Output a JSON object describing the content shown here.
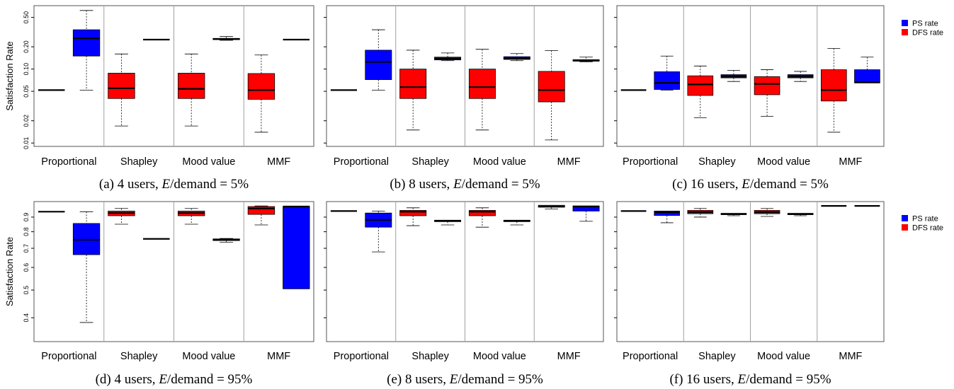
{
  "figure": {
    "legend": {
      "entries": [
        {
          "label": "PS rate",
          "color": "#0000ff"
        },
        {
          "label": "DFS rate",
          "color": "#ff0000"
        }
      ]
    },
    "ylabel": "Satisfaction Rate"
  },
  "colors": {
    "ps": "#0000ff",
    "dfs": "#ff0000",
    "frame": "#555555",
    "separator": "#a0a0a0"
  },
  "chart_data": [
    {
      "id": "a",
      "type": "box",
      "scale": "log",
      "caption": {
        "prefix": "(a) 4 users, ",
        "var": "E",
        "suffix": "/demand = 5%"
      },
      "ylabel": "Satisfaction Rate",
      "ylim": [
        0.009,
        0.72
      ],
      "yticks": [
        0.01,
        0.02,
        0.05,
        0.1,
        0.2,
        0.5
      ],
      "yticklabels": [
        "0.01",
        "0.02",
        "0.05",
        "0.10",
        "0.20",
        "0.50"
      ],
      "categories": [
        "Proportional",
        "Shapley",
        "Mood value",
        "MMF"
      ],
      "series": [
        {
          "name": "DFS rate",
          "color": "#ff0000",
          "boxes": [
            {
              "min": 0.052,
              "q1": 0.052,
              "median": 0.052,
              "q3": 0.052,
              "max": 0.052
            },
            {
              "min": 0.017,
              "q1": 0.04,
              "median": 0.055,
              "q3": 0.088,
              "max": 0.16
            },
            {
              "min": 0.017,
              "q1": 0.04,
              "median": 0.054,
              "q3": 0.088,
              "max": 0.16
            },
            {
              "min": 0.014,
              "q1": 0.039,
              "median": 0.052,
              "q3": 0.087,
              "max": 0.155
            }
          ]
        },
        {
          "name": "PS rate",
          "color": "#0000ff",
          "boxes": [
            {
              "min": 0.052,
              "q1": 0.15,
              "median": 0.26,
              "q3": 0.34,
              "max": 0.62
            },
            {
              "min": 0.25,
              "q1": 0.25,
              "median": 0.25,
              "q3": 0.25,
              "max": 0.25
            },
            {
              "min": 0.245,
              "q1": 0.25,
              "median": 0.255,
              "q3": 0.26,
              "max": 0.275
            },
            {
              "min": 0.25,
              "q1": 0.25,
              "median": 0.25,
              "q3": 0.25,
              "max": 0.25
            }
          ]
        }
      ]
    },
    {
      "id": "b",
      "type": "box",
      "scale": "log",
      "caption": {
        "prefix": "(b) 8 users, ",
        "var": "E",
        "suffix": "/demand = 5%"
      },
      "ylabel": "",
      "ylim": [
        0.009,
        0.72
      ],
      "yticks": [
        0.01,
        0.02,
        0.05,
        0.1,
        0.2,
        0.5
      ],
      "yticklabels": [
        "",
        "",
        "",
        "",
        "",
        ""
      ],
      "categories": [
        "Proportional",
        "Shapley",
        "Mood value",
        "MMF"
      ],
      "series": [
        {
          "name": "DFS rate",
          "color": "#ff0000",
          "boxes": [
            {
              "min": 0.052,
              "q1": 0.052,
              "median": 0.052,
              "q3": 0.052,
              "max": 0.052
            },
            {
              "min": 0.015,
              "q1": 0.04,
              "median": 0.057,
              "q3": 0.1,
              "max": 0.18
            },
            {
              "min": 0.015,
              "q1": 0.04,
              "median": 0.057,
              "q3": 0.1,
              "max": 0.185
            },
            {
              "min": 0.011,
              "q1": 0.036,
              "median": 0.052,
              "q3": 0.093,
              "max": 0.178
            }
          ]
        },
        {
          "name": "PS rate",
          "color": "#0000ff",
          "boxes": [
            {
              "min": 0.052,
              "q1": 0.072,
              "median": 0.125,
              "q3": 0.18,
              "max": 0.34
            },
            {
              "min": 0.13,
              "q1": 0.133,
              "median": 0.138,
              "q3": 0.145,
              "max": 0.165
            },
            {
              "min": 0.13,
              "q1": 0.135,
              "median": 0.14,
              "q3": 0.147,
              "max": 0.162
            },
            {
              "min": 0.125,
              "q1": 0.128,
              "median": 0.13,
              "q3": 0.134,
              "max": 0.145
            }
          ]
        }
      ]
    },
    {
      "id": "c",
      "type": "box",
      "scale": "log",
      "caption": {
        "prefix": "(c) 16 users, ",
        "var": "E",
        "suffix": "/demand = 5%"
      },
      "ylabel": "",
      "ylim": [
        0.009,
        0.72
      ],
      "yticks": [
        0.01,
        0.02,
        0.05,
        0.1,
        0.2,
        0.5
      ],
      "yticklabels": [
        "",
        "",
        "",
        "",
        "",
        ""
      ],
      "categories": [
        "Proportional",
        "Shapley",
        "Mood value",
        "MMF"
      ],
      "series": [
        {
          "name": "DFS rate",
          "color": "#ff0000",
          "boxes": [
            {
              "min": 0.052,
              "q1": 0.052,
              "median": 0.052,
              "q3": 0.052,
              "max": 0.052
            },
            {
              "min": 0.022,
              "q1": 0.044,
              "median": 0.062,
              "q3": 0.081,
              "max": 0.11
            },
            {
              "min": 0.023,
              "q1": 0.045,
              "median": 0.063,
              "q3": 0.079,
              "max": 0.098
            },
            {
              "min": 0.014,
              "q1": 0.037,
              "median": 0.052,
              "q3": 0.098,
              "max": 0.19
            }
          ]
        },
        {
          "name": "PS rate",
          "color": "#0000ff",
          "boxes": [
            {
              "min": 0.052,
              "q1": 0.053,
              "median": 0.065,
              "q3": 0.092,
              "max": 0.15
            },
            {
              "min": 0.068,
              "q1": 0.076,
              "median": 0.08,
              "q3": 0.084,
              "max": 0.096
            },
            {
              "min": 0.068,
              "q1": 0.076,
              "median": 0.08,
              "q3": 0.084,
              "max": 0.093
            },
            {
              "min": 0.065,
              "q1": 0.065,
              "median": 0.066,
              "q3": 0.098,
              "max": 0.145
            }
          ]
        }
      ]
    },
    {
      "id": "d",
      "type": "box",
      "scale": "log",
      "caption": {
        "prefix": "(d) 4 users, ",
        "var": "E",
        "suffix": "/demand = 95%"
      },
      "ylabel": "Satisfaction Rate",
      "ylim": [
        0.33,
        1.02
      ],
      "yticks": [
        0.4,
        0.5,
        0.6,
        0.7,
        0.8,
        0.9
      ],
      "yticklabels": [
        "0.4",
        "0.5",
        "0.6",
        "0.7",
        "0.8",
        "0.9"
      ],
      "categories": [
        "Proportional",
        "Shapley",
        "Mood value",
        "MMF"
      ],
      "series": [
        {
          "name": "DFS rate",
          "color": "#ff0000",
          "boxes": [
            {
              "min": 0.94,
              "q1": 0.94,
              "median": 0.94,
              "q3": 0.94,
              "max": 0.94
            },
            {
              "min": 0.85,
              "q1": 0.91,
              "median": 0.93,
              "q3": 0.945,
              "max": 0.965
            },
            {
              "min": 0.85,
              "q1": 0.91,
              "median": 0.93,
              "q3": 0.945,
              "max": 0.965
            },
            {
              "min": 0.845,
              "q1": 0.92,
              "median": 0.965,
              "q3": 0.98,
              "max": 0.985
            }
          ]
        },
        {
          "name": "PS rate",
          "color": "#0000ff",
          "boxes": [
            {
              "min": 0.385,
              "q1": 0.665,
              "median": 0.75,
              "q3": 0.855,
              "max": 0.94
            },
            {
              "min": 0.755,
              "q1": 0.755,
              "median": 0.755,
              "q3": 0.755,
              "max": 0.755
            },
            {
              "min": 0.735,
              "q1": 0.745,
              "median": 0.75,
              "q3": 0.755,
              "max": 0.758
            },
            {
              "min": 0.505,
              "q1": 0.505,
              "median": 0.98,
              "q3": 0.98,
              "max": 0.98
            }
          ]
        }
      ]
    },
    {
      "id": "e",
      "type": "box",
      "scale": "log",
      "caption": {
        "prefix": "(e) 8 users, ",
        "var": "E",
        "suffix": "/demand = 95%"
      },
      "ylabel": "",
      "ylim": [
        0.33,
        1.02
      ],
      "yticks": [
        0.4,
        0.5,
        0.6,
        0.7,
        0.8,
        0.9
      ],
      "yticklabels": [
        "",
        "",
        "",
        "",
        "",
        ""
      ],
      "categories": [
        "Proportional",
        "Shapley",
        "Mood value",
        "MMF"
      ],
      "series": [
        {
          "name": "DFS rate",
          "color": "#ff0000",
          "boxes": [
            {
              "min": 0.945,
              "q1": 0.945,
              "median": 0.945,
              "q3": 0.945,
              "max": 0.945
            },
            {
              "min": 0.84,
              "q1": 0.91,
              "median": 0.94,
              "q3": 0.95,
              "max": 0.97
            },
            {
              "min": 0.83,
              "q1": 0.91,
              "median": 0.94,
              "q3": 0.95,
              "max": 0.97
            },
            {
              "min": 0.96,
              "q1": 0.975,
              "median": 0.98,
              "q3": 0.99,
              "max": 0.99
            }
          ]
        },
        {
          "name": "PS rate",
          "color": "#0000ff",
          "boxes": [
            {
              "min": 0.68,
              "q1": 0.83,
              "median": 0.88,
              "q3": 0.93,
              "max": 0.945
            },
            {
              "min": 0.845,
              "q1": 0.868,
              "median": 0.872,
              "q3": 0.878,
              "max": 0.88
            },
            {
              "min": 0.845,
              "q1": 0.868,
              "median": 0.872,
              "q3": 0.878,
              "max": 0.88
            },
            {
              "min": 0.87,
              "q1": 0.945,
              "median": 0.98,
              "q3": 0.985,
              "max": 0.985
            }
          ]
        }
      ]
    },
    {
      "id": "f",
      "type": "box",
      "scale": "log",
      "caption": {
        "prefix": "(f) 16 users, ",
        "var": "E",
        "suffix": "/demand = 95%"
      },
      "ylabel": "",
      "ylim": [
        0.33,
        1.02
      ],
      "yticks": [
        0.4,
        0.5,
        0.6,
        0.7,
        0.8,
        0.9
      ],
      "yticklabels": [
        "",
        "",
        "",
        "",
        "",
        ""
      ],
      "categories": [
        "Proportional",
        "Shapley",
        "Mood value",
        "MMF"
      ],
      "series": [
        {
          "name": "DFS rate",
          "color": "#ff0000",
          "boxes": [
            {
              "min": 0.945,
              "q1": 0.945,
              "median": 0.945,
              "q3": 0.945,
              "max": 0.945
            },
            {
              "min": 0.9,
              "q1": 0.925,
              "median": 0.937,
              "q3": 0.95,
              "max": 0.965
            },
            {
              "min": 0.905,
              "q1": 0.925,
              "median": 0.937,
              "q3": 0.95,
              "max": 0.965
            },
            {
              "min": 0.985,
              "q1": 0.985,
              "median": 0.985,
              "q3": 0.985,
              "max": 0.985
            }
          ]
        },
        {
          "name": "PS rate",
          "color": "#0000ff",
          "boxes": [
            {
              "min": 0.86,
              "q1": 0.912,
              "median": 0.935,
              "q3": 0.945,
              "max": 0.945
            },
            {
              "min": 0.91,
              "q1": 0.918,
              "median": 0.922,
              "q3": 0.928,
              "max": 0.93
            },
            {
              "min": 0.91,
              "q1": 0.918,
              "median": 0.922,
              "q3": 0.928,
              "max": 0.93
            },
            {
              "min": 0.985,
              "q1": 0.985,
              "median": 0.985,
              "q3": 0.985,
              "max": 0.985
            }
          ]
        }
      ]
    }
  ]
}
